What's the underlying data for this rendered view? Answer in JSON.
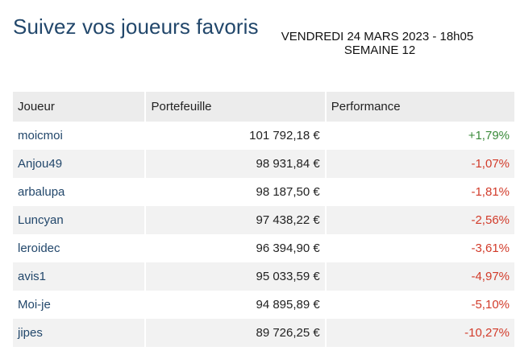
{
  "header": {
    "title": "Suivez vos joueurs favoris",
    "date_line": "VENDREDI 24 MARS 2023 - 18h05",
    "week_line": "SEMAINE 12"
  },
  "table": {
    "columns": [
      "Joueur",
      "Portefeuille",
      "Performance"
    ],
    "rows": [
      {
        "player": "moicmoi",
        "wallet": "101 792,18 €",
        "performance": "+1,79%",
        "trend": "positive"
      },
      {
        "player": "Anjou49",
        "wallet": "98 931,84 €",
        "performance": "-1,07%",
        "trend": "negative"
      },
      {
        "player": "arbalupa",
        "wallet": "98 187,50 €",
        "performance": "-1,81%",
        "trend": "negative"
      },
      {
        "player": "Luncyan",
        "wallet": "97 438,22 €",
        "performance": "-2,56%",
        "trend": "negative"
      },
      {
        "player": "leroidec",
        "wallet": "96 394,90 €",
        "performance": "-3,61%",
        "trend": "negative"
      },
      {
        "player": "avis1",
        "wallet": "95 033,59 €",
        "performance": "-4,97%",
        "trend": "negative"
      },
      {
        "player": "Moi-je",
        "wallet": "94 895,89 €",
        "performance": "-5,10%",
        "trend": "negative"
      },
      {
        "player": "jipes",
        "wallet": "89 726,25 €",
        "performance": "-10,27%",
        "trend": "negative"
      }
    ]
  },
  "colors": {
    "title": "#22476b",
    "player_link": "#22476b",
    "positive": "#3a8a3a",
    "negative": "#d23b2a",
    "header_bg": "#ececec",
    "stripe_bg": "#f2f2f2"
  }
}
